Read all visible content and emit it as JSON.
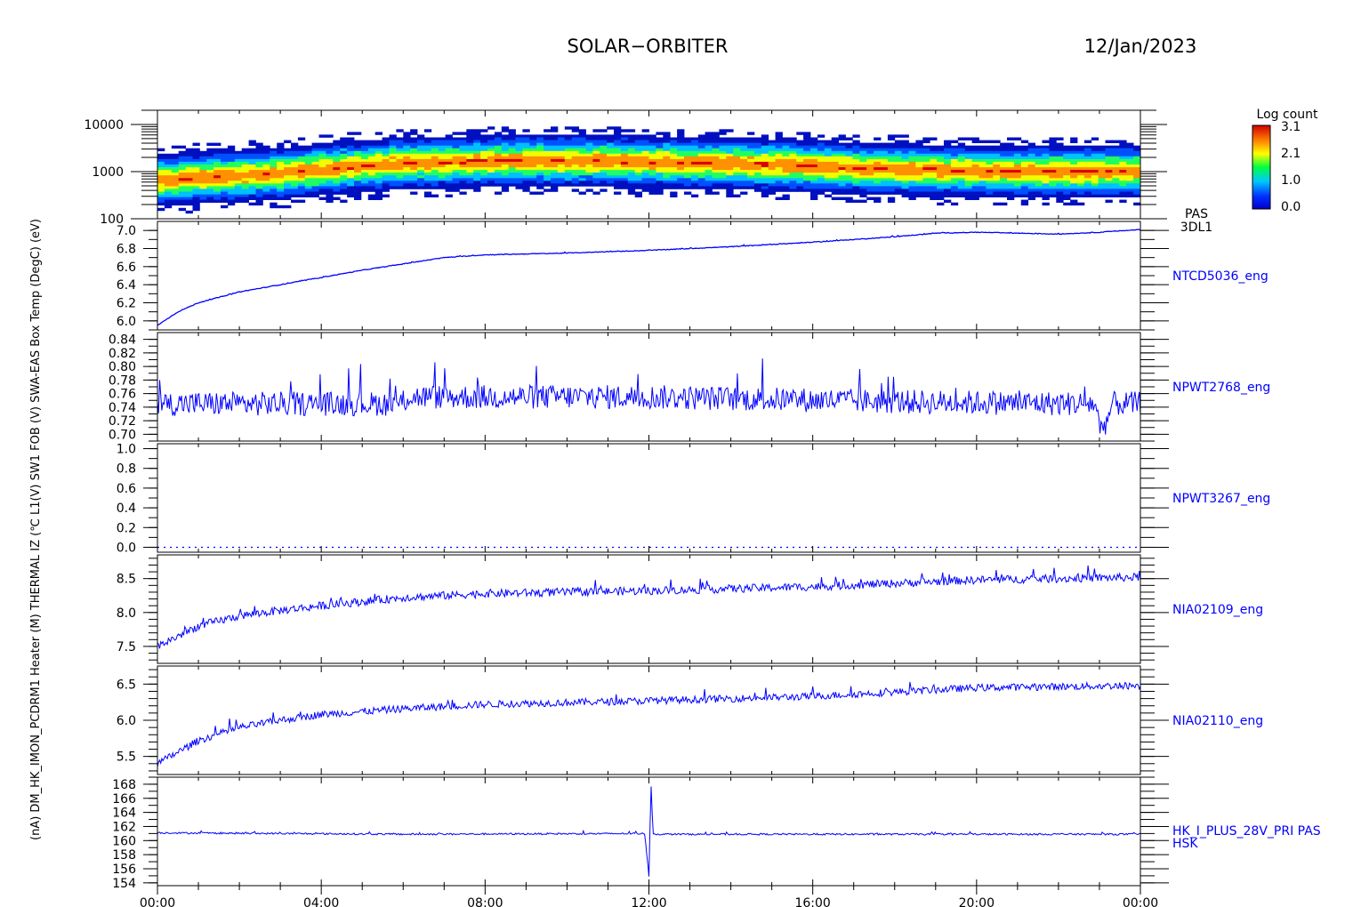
{
  "header": {
    "mission": "SOLAR−ORBITER",
    "date": "12/Jan/2023"
  },
  "y_axis_title": "(nA) DM_HK_IMON_PCDRM1 Heater (M) THERMAL IZ (℃ L1(V) SW1 FOB (V) SWA-EAS Box Temp (DegC) (eV)",
  "colorbar": {
    "title": "Log count",
    "ticks": [
      "3.1",
      "2.1",
      "1.0",
      "0.0"
    ],
    "min": 0.0,
    "max": 3.1
  },
  "x_ticks": [
    "00:00",
    "04:00",
    "08:00",
    "12:00",
    "16:00",
    "20:00",
    "00:00"
  ],
  "line_color": "#0000ff",
  "chart_data": [
    {
      "type": "heatmap",
      "label": "PAS 3DL1",
      "label_lines": [
        "PAS",
        "3DL1"
      ],
      "ylabel": "(eV)",
      "yscale": "log",
      "ylim": [
        100,
        20000
      ],
      "yticks": [
        "10000",
        "1000",
        "100"
      ],
      "xlim_hours": [
        0,
        24
      ],
      "ridge_energy_eV": {
        "x": [
          0,
          3,
          6,
          9,
          12,
          15,
          18,
          21,
          24
        ],
        "y": [
          650,
          900,
          1500,
          1700,
          1600,
          1400,
          1100,
          1000,
          1000
        ]
      }
    },
    {
      "type": "line",
      "label": "NTCD5036_eng",
      "ylim": [
        5.9,
        7.1
      ],
      "yticks": [
        "7.0",
        "6.8",
        "6.6",
        "6.4",
        "6.2",
        "6.0"
      ],
      "noise": 0.004,
      "x": [
        0,
        0.5,
        1,
        2,
        3,
        4,
        5,
        6,
        7,
        8,
        10,
        12,
        14,
        16,
        18,
        19,
        20,
        21,
        22,
        23,
        24
      ],
      "y": [
        5.95,
        6.1,
        6.2,
        6.32,
        6.4,
        6.48,
        6.56,
        6.63,
        6.7,
        6.73,
        6.75,
        6.78,
        6.82,
        6.87,
        6.93,
        6.97,
        6.98,
        6.97,
        6.96,
        6.98,
        7.01
      ]
    },
    {
      "type": "line",
      "label": "NPWT2768_eng",
      "ylim": [
        0.69,
        0.85
      ],
      "yticks": [
        "0.84",
        "0.82",
        "0.80",
        "0.78",
        "0.76",
        "0.74",
        "0.72",
        "0.70"
      ],
      "noise": 0.018,
      "x": [
        0,
        6,
        6.1,
        12,
        18,
        22.9,
        23.0,
        23.2,
        23.3,
        24
      ],
      "y": [
        0.745,
        0.745,
        0.755,
        0.755,
        0.748,
        0.745,
        0.71,
        0.72,
        0.745,
        0.745
      ]
    },
    {
      "type": "line",
      "label": "NPWT3267_eng",
      "ylim": [
        -0.05,
        1.05
      ],
      "yticks": [
        "1.0",
        "0.8",
        "0.6",
        "0.4",
        "0.2",
        "0.0"
      ],
      "noise": 0.0,
      "dotted": true,
      "x": [
        0,
        24
      ],
      "y": [
        0.0,
        0.0
      ]
    },
    {
      "type": "line",
      "label": "NIA02109_eng",
      "ylim": [
        7.25,
        8.85
      ],
      "yticks": [
        "8.5",
        "8.0",
        "7.5"
      ],
      "noise": 0.06,
      "x": [
        0,
        1,
        2,
        3,
        4,
        6,
        8,
        12,
        16,
        20,
        24
      ],
      "y": [
        7.5,
        7.8,
        7.95,
        8.03,
        8.1,
        8.22,
        8.28,
        8.32,
        8.38,
        8.48,
        8.52
      ]
    },
    {
      "type": "line",
      "label": "NIA02110_eng",
      "ylim": [
        5.25,
        6.75
      ],
      "yticks": [
        "6.5",
        "6.0",
        "5.5"
      ],
      "noise": 0.05,
      "x": [
        0,
        1,
        2,
        3,
        4,
        6,
        8,
        12,
        16,
        20,
        24
      ],
      "y": [
        5.4,
        5.72,
        5.9,
        6.0,
        6.08,
        6.16,
        6.22,
        6.27,
        6.33,
        6.45,
        6.48
      ]
    },
    {
      "type": "line",
      "label": "HK_I_PLUS_28V_PRI PAS HSK",
      "label_lines": [
        "HK_I_PLUS_28V_PRI PAS",
        "HSK"
      ],
      "ylim": [
        153.6,
        169.0
      ],
      "yticks": [
        "168",
        "166",
        "164",
        "162",
        "160",
        "158",
        "156",
        "154"
      ],
      "noise": 0.12,
      "x": [
        0,
        6,
        11.9,
        12.0,
        12.05,
        12.1,
        12.2,
        18,
        24
      ],
      "y": [
        161.1,
        160.9,
        161.0,
        155.0,
        167.8,
        161.0,
        160.9,
        160.9,
        160.9
      ]
    }
  ]
}
